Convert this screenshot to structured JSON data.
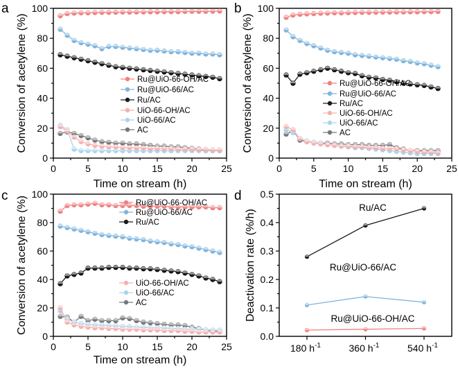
{
  "chart_data": [
    {
      "panel": "a",
      "type": "line",
      "xlabel": "Time on stream (h)",
      "ylabel": "Conversion of acetylene (%)",
      "xlim": [
        0,
        25
      ],
      "ylim": [
        0,
        100
      ],
      "xticks": [
        0,
        5,
        10,
        15,
        20,
        25
      ],
      "yticks": [
        0,
        20,
        40,
        60,
        80,
        100
      ],
      "legend_position": "lower-right",
      "series": [
        {
          "name": "Ru@UiO-66-OH/AC",
          "color": "#f08080",
          "x": [
            1,
            2,
            3,
            4,
            5,
            6,
            7,
            8,
            9,
            10,
            11,
            12,
            13,
            14,
            15,
            16,
            17,
            18,
            19,
            20,
            21,
            22,
            23,
            24
          ],
          "values": [
            95,
            96.5,
            96.8,
            97,
            97,
            97.2,
            97.3,
            97.3,
            97.4,
            97.5,
            97.5,
            97.6,
            97.6,
            97.7,
            97.7,
            97.8,
            97.8,
            97.8,
            97.9,
            98,
            98,
            98,
            98.1,
            98.2
          ]
        },
        {
          "name": "Ru@UiO-66/AC",
          "color": "#7fb4dd",
          "x": [
            1,
            2,
            3,
            4,
            5,
            6,
            7,
            8,
            9,
            10,
            11,
            12,
            13,
            14,
            15,
            16,
            17,
            18,
            19,
            20,
            21,
            22,
            23,
            24
          ],
          "values": [
            86,
            82,
            78.5,
            77,
            76,
            75,
            73,
            74.5,
            74.5,
            74,
            73.5,
            73,
            72.5,
            72,
            72,
            71.5,
            71,
            71,
            70.5,
            70,
            70,
            69.5,
            69.5,
            69
          ]
        },
        {
          "name": "Ru/AC",
          "color": "#1a1a1a",
          "x": [
            1,
            2,
            3,
            4,
            5,
            6,
            7,
            8,
            9,
            10,
            11,
            12,
            13,
            14,
            15,
            16,
            17,
            18,
            19,
            20,
            21,
            22,
            23,
            24
          ],
          "values": [
            69,
            68,
            67,
            66,
            65,
            64,
            63,
            62,
            61,
            60.5,
            60,
            59.5,
            59,
            58.5,
            58,
            57.5,
            57,
            56.5,
            56,
            55.5,
            55,
            54.5,
            54,
            53
          ]
        },
        {
          "name": "UiO-66-OH/AC",
          "color": "#f4b0b0",
          "x": [
            1,
            2,
            3,
            4,
            5,
            6,
            7,
            8,
            9,
            10,
            11,
            12,
            13,
            14,
            15,
            16,
            17,
            18,
            19,
            20,
            21,
            22,
            23,
            24
          ],
          "values": [
            21,
            18,
            14,
            11,
            9.5,
            8.5,
            8,
            7.5,
            7.5,
            7,
            7,
            6.8,
            6.8,
            6.5,
            6.5,
            6.3,
            6.3,
            6,
            6,
            6,
            5.8,
            5.8,
            5.5,
            5.5
          ]
        },
        {
          "name": "UiO-66/AC",
          "color": "#a8d4ee",
          "x": [
            1,
            2,
            3,
            4,
            5,
            6,
            7,
            8,
            9,
            10,
            11,
            12,
            13,
            14,
            15,
            16,
            17,
            18,
            19,
            20,
            21,
            22,
            23,
            24
          ],
          "values": [
            22,
            19,
            6,
            5,
            5,
            5,
            5,
            5,
            5,
            5,
            5,
            5,
            5,
            5,
            5,
            5,
            5,
            5,
            5,
            5,
            5,
            5,
            5,
            5
          ]
        },
        {
          "name": "AC",
          "color": "#777777",
          "x": [
            1,
            2,
            3,
            4,
            5,
            6,
            7,
            8,
            9,
            10,
            11,
            12,
            13,
            14,
            15,
            16,
            17,
            18,
            19,
            20,
            21,
            22,
            23,
            24
          ],
          "values": [
            16.5,
            17.5,
            16.5,
            15,
            13.5,
            12,
            11,
            10.5,
            10,
            10,
            9.5,
            9.5,
            9,
            8.5,
            8,
            8,
            7.5,
            7.5,
            7,
            6.5,
            6,
            5,
            5,
            5
          ]
        }
      ]
    },
    {
      "panel": "b",
      "type": "line",
      "xlabel": "Time on stream (h)",
      "ylabel": "Conversion of acetylene (%)",
      "xlim": [
        0,
        25
      ],
      "ylim": [
        0,
        100
      ],
      "xticks": [
        0,
        5,
        10,
        15,
        20,
        25
      ],
      "yticks": [
        0,
        20,
        40,
        60,
        80,
        100
      ],
      "legend_position": "middle-right",
      "series": [
        {
          "name": "Ru@UiO-66-OH/AC",
          "color": "#f08080",
          "x": [
            1,
            2,
            3,
            4,
            5,
            6,
            7,
            8,
            9,
            10,
            11,
            12,
            13,
            14,
            15,
            16,
            17,
            18,
            19,
            20,
            21,
            22,
            23
          ],
          "values": [
            94,
            95.5,
            96,
            96.3,
            96.5,
            96.7,
            96.8,
            97,
            97,
            97.1,
            97.2,
            97.3,
            97.3,
            97.4,
            97.5,
            97.5,
            97.6,
            97.6,
            97.7,
            97.7,
            97.8,
            97.8,
            97.9
          ]
        },
        {
          "name": "Ru@UiO-66/AC",
          "color": "#7fb4dd",
          "x": [
            1,
            2,
            3,
            4,
            5,
            6,
            7,
            8,
            9,
            10,
            11,
            12,
            13,
            14,
            15,
            16,
            17,
            18,
            19,
            20,
            21,
            22,
            23
          ],
          "values": [
            85.5,
            81,
            78.5,
            76.5,
            75,
            73.5,
            72,
            71,
            70.5,
            70,
            69,
            68.5,
            68,
            67.5,
            67,
            66.5,
            66,
            65,
            64.5,
            63.5,
            63,
            62,
            61
          ]
        },
        {
          "name": "Ru/AC",
          "color": "#1a1a1a",
          "x": [
            1,
            2,
            3,
            4,
            5,
            6,
            7,
            8,
            9,
            10,
            11,
            12,
            13,
            14,
            15,
            16,
            17,
            18,
            19,
            20,
            21,
            22,
            23
          ],
          "values": [
            55.5,
            50,
            56,
            57,
            58,
            59,
            60,
            59,
            58,
            57,
            56.5,
            55,
            54,
            53.5,
            52.5,
            52,
            51,
            50,
            49.5,
            49,
            48.5,
            47.5,
            46.5
          ]
        },
        {
          "name": "UiO-66-OH/AC",
          "color": "#f4b0b0",
          "x": [
            1,
            2,
            3,
            4,
            5,
            6,
            7,
            8,
            9,
            10,
            11,
            12,
            13,
            14,
            15,
            16,
            17,
            18,
            19,
            20,
            21,
            22,
            23
          ],
          "values": [
            21,
            19,
            13,
            11,
            10,
            9.5,
            9,
            8.5,
            8,
            8,
            7.5,
            7.5,
            7,
            7,
            6.5,
            6.5,
            6,
            5.5,
            5,
            4.5,
            4,
            4,
            3.5
          ]
        },
        {
          "name": "UiO-66/AC",
          "color": "#a8d4ee",
          "x": [
            1,
            2,
            3,
            4,
            5,
            6,
            7,
            8,
            9,
            10,
            11,
            12,
            13,
            14,
            15,
            16,
            17,
            18,
            19,
            20,
            21,
            22,
            23
          ],
          "values": [
            19,
            17,
            13,
            11.5,
            10.5,
            10,
            9,
            8.5,
            8,
            7.5,
            7,
            7,
            6.5,
            6,
            5.5,
            5,
            4.5,
            4,
            3.5,
            3,
            3,
            3,
            3
          ]
        },
        {
          "name": "AC",
          "color": "#777777",
          "x": [
            1,
            2,
            3,
            4,
            5,
            6,
            7,
            8,
            9,
            10,
            11,
            12,
            13,
            14,
            15,
            16,
            17,
            18,
            19,
            20,
            21,
            22,
            23
          ],
          "values": [
            16,
            18,
            12,
            11,
            10.5,
            10,
            10,
            9.5,
            9.5,
            9,
            9,
            9,
            8.5,
            8.5,
            8.5,
            9,
            7,
            6,
            5,
            5,
            5,
            5,
            5
          ]
        }
      ]
    },
    {
      "panel": "c",
      "type": "line",
      "xlabel": "Time on stream (h)",
      "ylabel": "Conversion of acetylene (%)",
      "xlim": [
        0,
        25
      ],
      "ylim": [
        0,
        100
      ],
      "xticks": [
        0,
        5,
        10,
        15,
        20,
        25
      ],
      "yticks": [
        0,
        20,
        40,
        60,
        80,
        100
      ],
      "legend_position": "top-right and lower-right",
      "series": [
        {
          "name": "Ru@UiO-66-OH/AC",
          "color": "#f08080",
          "x": [
            1,
            2,
            3,
            4,
            5,
            6,
            7,
            8,
            9,
            10,
            11,
            12,
            13,
            14,
            15,
            16,
            17,
            18,
            19,
            20,
            21,
            22,
            23,
            24
          ],
          "values": [
            88,
            92,
            92.5,
            92.5,
            93,
            93.5,
            92.5,
            92.5,
            92,
            92,
            92,
            92,
            91.5,
            91.5,
            91.5,
            91.5,
            91,
            91,
            91,
            91,
            91,
            91,
            90.5,
            90.5
          ]
        },
        {
          "name": "Ru@UiO-66/AC",
          "color": "#7fb4dd",
          "x": [
            1,
            2,
            3,
            4,
            5,
            6,
            7,
            8,
            9,
            10,
            11,
            12,
            13,
            14,
            15,
            16,
            17,
            18,
            19,
            20,
            21,
            22,
            23,
            24
          ],
          "values": [
            77.5,
            76.5,
            75.5,
            74.5,
            73.5,
            72.5,
            71.5,
            71,
            70.5,
            70,
            69,
            68.5,
            68,
            67,
            66.5,
            66,
            65,
            64.5,
            63.5,
            63,
            62,
            61,
            60,
            59
          ]
        },
        {
          "name": "Ru/AC",
          "color": "#1a1a1a",
          "x": [
            1,
            2,
            3,
            4,
            5,
            6,
            7,
            8,
            9,
            10,
            11,
            12,
            13,
            14,
            15,
            16,
            17,
            18,
            19,
            20,
            21,
            22,
            23,
            24
          ],
          "values": [
            37,
            42.5,
            43.5,
            44.5,
            48,
            48,
            48,
            48.5,
            48.5,
            48.5,
            48,
            48,
            47.5,
            47.5,
            47,
            46.5,
            46,
            45.5,
            44.5,
            43.5,
            42.5,
            41,
            40,
            38.5
          ]
        },
        {
          "name": "UiO-66-OH/AC",
          "color": "#f4b0b0",
          "x": [
            1,
            2,
            3,
            4,
            5,
            6,
            7,
            8,
            9,
            10,
            11,
            12,
            13,
            14,
            15,
            16,
            17,
            18,
            19,
            20,
            21,
            22,
            23,
            24
          ],
          "values": [
            20,
            10,
            8,
            7,
            6.5,
            6,
            6,
            5.5,
            5.5,
            5,
            5,
            5,
            4.5,
            4.5,
            4.5,
            4,
            4,
            4,
            3.5,
            3.5,
            3,
            3,
            3,
            3
          ]
        },
        {
          "name": "UiO-66/AC",
          "color": "#a8d4ee",
          "x": [
            1,
            2,
            3,
            4,
            5,
            6,
            7,
            8,
            9,
            10,
            11,
            12,
            13,
            14,
            15,
            16,
            17,
            18,
            19,
            20,
            21,
            22,
            23,
            24
          ],
          "values": [
            18,
            12,
            10,
            9,
            8.5,
            8,
            8,
            7.5,
            7.5,
            7,
            7,
            6.5,
            6.5,
            6,
            6,
            6,
            5.5,
            5.5,
            5,
            5,
            5,
            4.5,
            4.5,
            4.5
          ]
        },
        {
          "name": "AC",
          "color": "#777777",
          "x": [
            1,
            2,
            3,
            4,
            5,
            6,
            7,
            8,
            9,
            10,
            11,
            12,
            13,
            14,
            15,
            16,
            17,
            18,
            19,
            20,
            21,
            22,
            23,
            24
          ],
          "values": [
            14,
            13.5,
            10,
            14,
            11,
            12,
            11,
            11,
            11,
            13,
            12.5,
            11,
            10,
            9.5,
            9,
            8.5,
            8,
            8,
            7.5,
            6.5,
            5.5,
            4.5,
            3.5,
            3.5
          ]
        }
      ]
    },
    {
      "panel": "d",
      "type": "line",
      "xlabel": "",
      "ylabel": "Deactivation rate (%/h)",
      "ylim": [
        0.0,
        0.5
      ],
      "yticks": [
        "0.0",
        "0.1",
        "0.2",
        "0.3",
        "0.4",
        "0.5"
      ],
      "categories": [
        "180 h",
        "360 h",
        "540 h"
      ],
      "category_superscript": "-1",
      "series": [
        {
          "name": "Ru/AC",
          "color": "#1a1a1a",
          "values": [
            0.28,
            0.39,
            0.45
          ]
        },
        {
          "name": "Ru@UiO-66/AC",
          "color": "#7fb4dd",
          "values": [
            0.11,
            0.14,
            0.12
          ]
        },
        {
          "name": "Ru@UiO-66-OH/AC",
          "color": "#f08080",
          "values": [
            0.022,
            0.025,
            0.028
          ]
        }
      ],
      "annotations": [
        "Ru/AC",
        "Ru@UiO-66/AC",
        "Ru@UiO-66-OH/AC"
      ]
    }
  ]
}
